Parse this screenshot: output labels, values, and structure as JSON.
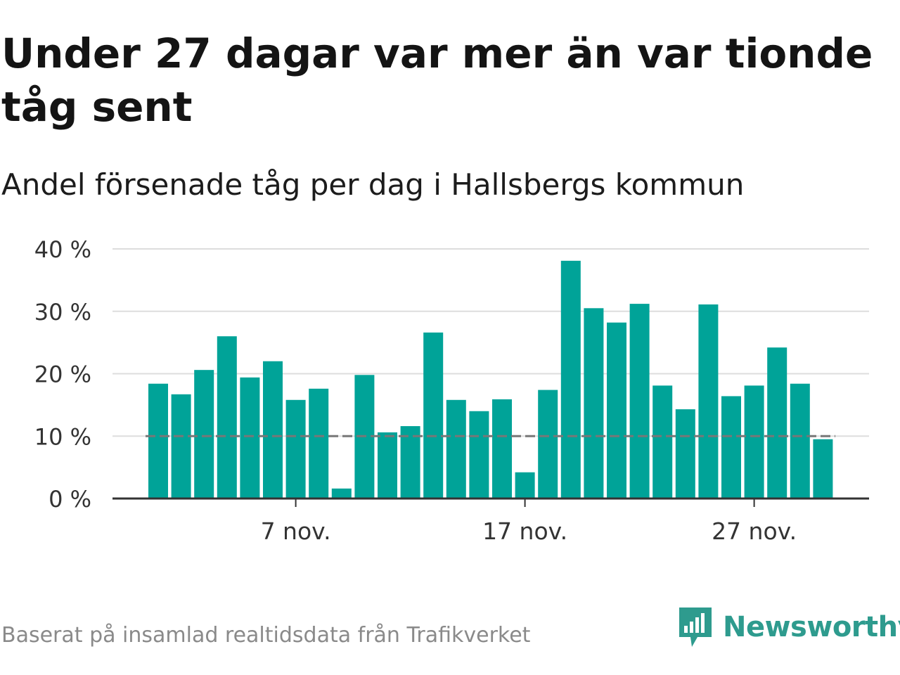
{
  "title": "Under 27 dagar var mer än var tionde tåg sent",
  "subtitle": "Andel försenade tåg per dag i Hallsbergs kommun",
  "footer": {
    "source": "Baserat på insamlad realtidsdata från Trafikverket",
    "brand": "Newsworthy"
  },
  "colors": {
    "bar": "#00a398",
    "reference_line": "#777777",
    "gridline": "#dddddd",
    "axis": "#333333",
    "brand": "#2e9b8e"
  },
  "icons": [
    "newsworthy-logo-icon"
  ],
  "chart_data": {
    "type": "bar",
    "x_start": "2023-11-01",
    "x": [
      "1 nov.",
      "2 nov.",
      "3 nov.",
      "4 nov.",
      "5 nov.",
      "6 nov.",
      "7 nov.",
      "8 nov.",
      "9 nov.",
      "10 nov.",
      "11 nov.",
      "12 nov.",
      "13 nov.",
      "14 nov.",
      "15 nov.",
      "16 nov.",
      "17 nov.",
      "18 nov.",
      "19 nov.",
      "20 nov.",
      "21 nov.",
      "22 nov.",
      "23 nov.",
      "24 nov.",
      "25 nov.",
      "26 nov.",
      "27 nov.",
      "28 nov.",
      "29 nov.",
      "30 nov."
    ],
    "values": [
      18.4,
      16.7,
      20.6,
      26.0,
      19.4,
      22.0,
      15.8,
      17.6,
      1.6,
      19.8,
      10.6,
      11.6,
      26.6,
      15.8,
      14.0,
      15.9,
      4.2,
      17.4,
      38.1,
      30.5,
      28.2,
      31.2,
      18.1,
      14.3,
      31.1,
      16.4,
      18.1,
      24.2,
      18.4,
      9.5
    ],
    "xtick_labels": [
      "7 nov.",
      "17 nov.",
      "27 nov."
    ],
    "ytick_labels": [
      "0 %",
      "10 %",
      "20 %",
      "30 %",
      "40 %"
    ],
    "yticks": [
      0,
      10,
      20,
      30,
      40
    ],
    "ylim": [
      0,
      40
    ],
    "reference_line": 10,
    "grid": true,
    "xlabel": "",
    "ylabel": ""
  }
}
